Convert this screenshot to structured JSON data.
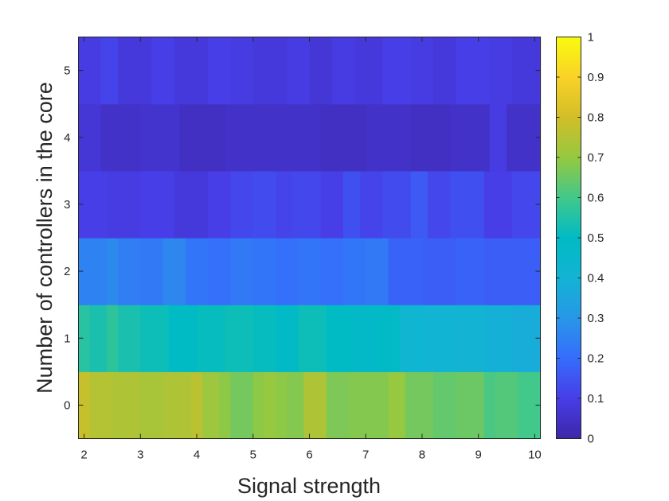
{
  "chart_data": {
    "type": "heatmap",
    "title": "",
    "xlabel": "Signal strength",
    "ylabel": "Number of controllers in the core",
    "xlim": [
      1.9,
      10.1
    ],
    "ylim": [
      -0.5,
      5.5
    ],
    "x_ticks": [
      "2",
      "3",
      "4",
      "5",
      "6",
      "7",
      "8",
      "9",
      "10"
    ],
    "y_ticks": [
      "0",
      "1",
      "2",
      "3",
      "4",
      "5"
    ],
    "colorbar": {
      "min": 0,
      "max": 1,
      "ticks": [
        "0",
        "0.1",
        "0.2",
        "0.3",
        "0.4",
        "0.5",
        "0.6",
        "0.7",
        "0.8",
        "0.9",
        "1"
      ],
      "colormap": "parula"
    },
    "rows": [
      {
        "y": 0,
        "x_edges": [
          1.9,
          2.1,
          2.5,
          3.0,
          3.4,
          3.9,
          4.1,
          4.4,
          4.6,
          5.0,
          5.2,
          5.4,
          5.6,
          5.9,
          6.3,
          6.7,
          7.4,
          7.7,
          8.2,
          8.6,
          9.1,
          9.3,
          9.7,
          10.1
        ],
        "values": [
          0.78,
          0.75,
          0.74,
          0.73,
          0.74,
          0.76,
          0.71,
          0.69,
          0.66,
          0.69,
          0.7,
          0.69,
          0.68,
          0.74,
          0.67,
          0.68,
          0.7,
          0.66,
          0.64,
          0.65,
          0.61,
          0.62,
          0.6
        ]
      },
      {
        "y": 1,
        "x_edges": [
          1.9,
          2.1,
          2.4,
          2.6,
          3.0,
          3.5,
          4.0,
          4.5,
          5.0,
          5.4,
          5.8,
          6.3,
          6.8,
          7.2,
          7.6,
          8.0,
          8.6,
          9.1,
          9.6,
          10.1
        ],
        "values": [
          0.56,
          0.54,
          0.57,
          0.54,
          0.52,
          0.5,
          0.51,
          0.52,
          0.51,
          0.49,
          0.52,
          0.5,
          0.48,
          0.49,
          0.42,
          0.41,
          0.4,
          0.39,
          0.38
        ]
      },
      {
        "y": 2,
        "x_edges": [
          1.9,
          2.4,
          2.6,
          3.0,
          3.4,
          3.8,
          4.2,
          4.6,
          5.0,
          5.4,
          5.8,
          6.2,
          6.6,
          7.0,
          7.4,
          8.0,
          8.6,
          9.1,
          10.1
        ],
        "values": [
          0.25,
          0.27,
          0.24,
          0.23,
          0.26,
          0.22,
          0.21,
          0.23,
          0.22,
          0.21,
          0.22,
          0.21,
          0.22,
          0.23,
          0.18,
          0.17,
          0.18,
          0.17
        ]
      },
      {
        "y": 3,
        "x_edges": [
          1.9,
          2.4,
          3.0,
          3.6,
          4.2,
          4.6,
          5.0,
          5.4,
          5.7,
          6.2,
          6.6,
          6.9,
          7.3,
          7.8,
          8.1,
          8.5,
          9.1,
          9.6,
          10.1
        ],
        "values": [
          0.1,
          0.09,
          0.1,
          0.08,
          0.1,
          0.12,
          0.13,
          0.11,
          0.12,
          0.1,
          0.14,
          0.11,
          0.13,
          0.16,
          0.12,
          0.14,
          0.1,
          0.12
        ]
      },
      {
        "y": 4,
        "x_edges": [
          1.9,
          2.3,
          3.0,
          3.7,
          4.5,
          5.4,
          6.2,
          7.0,
          7.8,
          8.5,
          9.2,
          9.5,
          10.1
        ],
        "values": [
          0.07,
          0.05,
          0.06,
          0.04,
          0.05,
          0.05,
          0.04,
          0.05,
          0.04,
          0.05,
          0.09,
          0.05
        ]
      },
      {
        "y": 5,
        "x_edges": [
          1.9,
          2.3,
          2.6,
          3.2,
          3.6,
          4.2,
          4.6,
          5.0,
          5.6,
          6.0,
          6.4,
          6.8,
          7.3,
          7.8,
          8.2,
          8.6,
          9.2,
          9.6,
          10.1
        ],
        "values": [
          0.09,
          0.11,
          0.08,
          0.1,
          0.08,
          0.1,
          0.09,
          0.08,
          0.09,
          0.07,
          0.09,
          0.08,
          0.1,
          0.09,
          0.08,
          0.1,
          0.09,
          0.08
        ]
      }
    ]
  }
}
